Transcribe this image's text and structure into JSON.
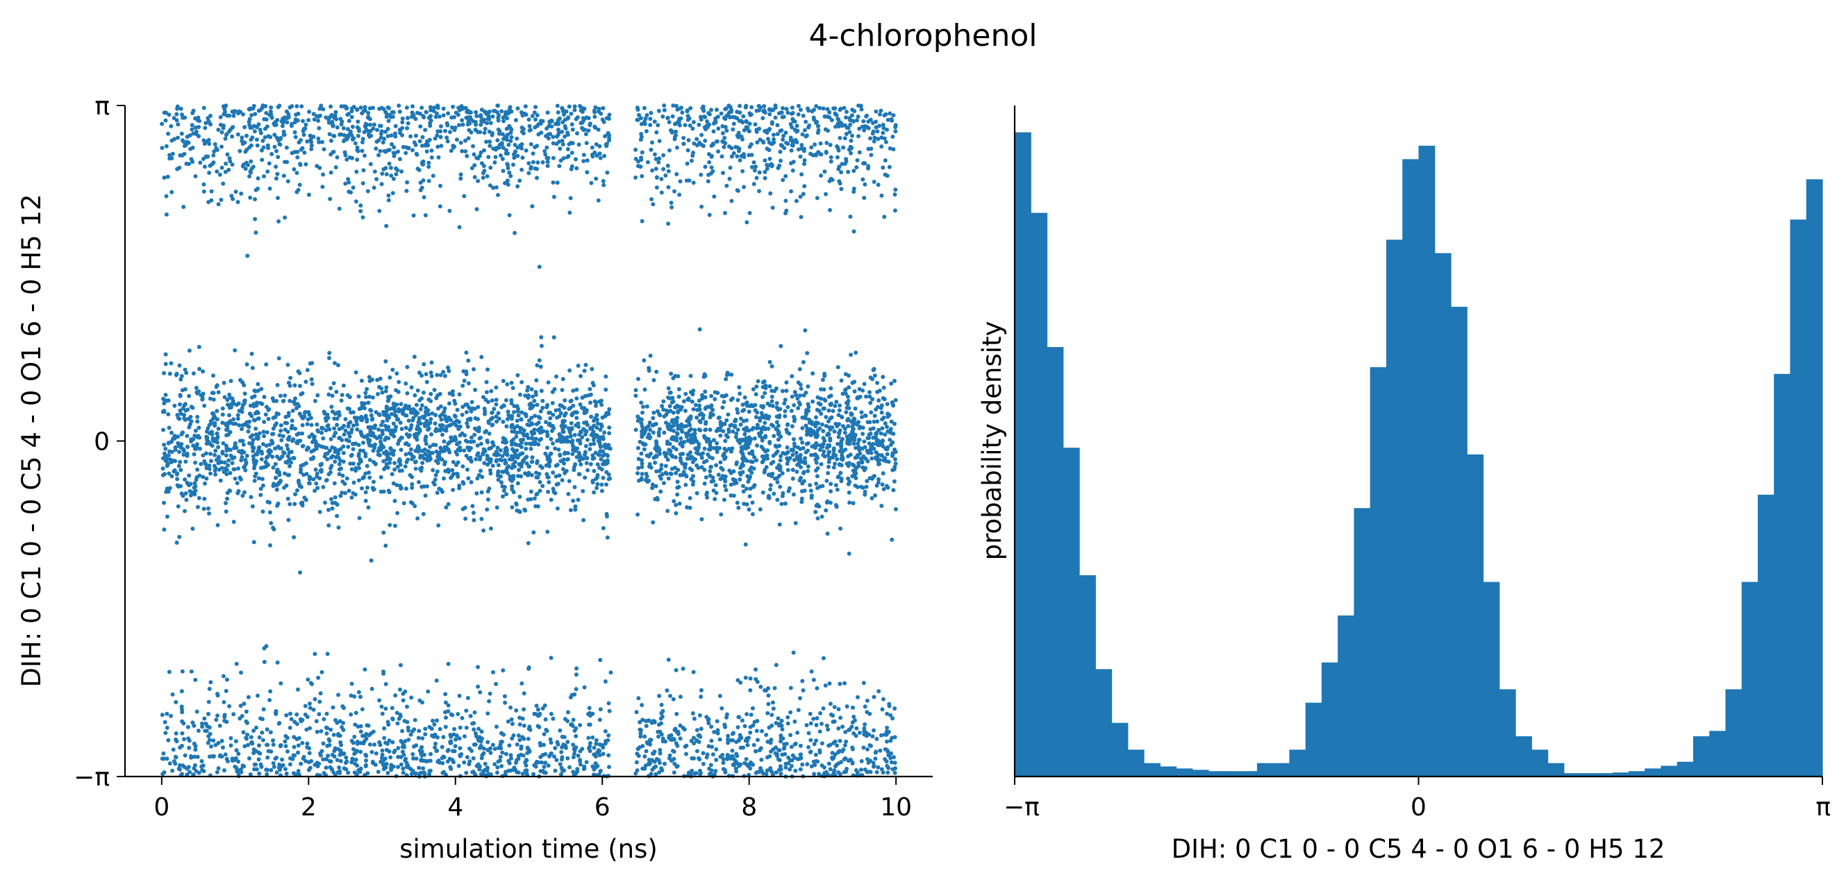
{
  "figure": {
    "title": "4-chlorophenol"
  },
  "colors": {
    "series": "#1f77b4",
    "axis": "#000000"
  },
  "chart_data": [
    {
      "type": "scatter",
      "title": "",
      "xlabel": "simulation time (ns)",
      "ylabel": "DIH:  0 C1 0 -  0 C5 4 -  0 O1 6 -  0 H5 12",
      "xlim": [
        -0.5,
        10.5
      ],
      "ylim": [
        -3.14159,
        3.14159
      ],
      "xticks": [
        0,
        2,
        4,
        6,
        8,
        10
      ],
      "xtick_labels": [
        "0",
        "2",
        "4",
        "6",
        "8",
        "10"
      ],
      "yticks": [
        -3.14159,
        0,
        3.14159
      ],
      "ytick_labels": [
        "−π",
        "0",
        "π"
      ],
      "n_points": 6500,
      "clusters": [
        {
          "center": 0,
          "spread": 0.32,
          "weight": 0.5
        },
        {
          "center": 3.14159,
          "spread": 0.42,
          "weight": 0.25
        },
        {
          "center": -3.14159,
          "spread": 0.42,
          "weight": 0.25
        }
      ],
      "gaps_ns": [
        [
          6.12,
          6.45
        ]
      ],
      "grid": false,
      "legend": "none"
    },
    {
      "type": "bar",
      "title": "",
      "xlabel": "DIH:  0 C1 0 -  0 C5 4 -  0 O1 6 -  0 H5 12",
      "ylabel": "probability density",
      "xlim": [
        -3.14159,
        3.14159
      ],
      "xticks": [
        -3.14159,
        0,
        3.14159
      ],
      "xtick_labels": [
        "−π",
        "0",
        "π"
      ],
      "bins": 50,
      "values": [
        0.96,
        0.84,
        0.64,
        0.49,
        0.3,
        0.16,
        0.08,
        0.04,
        0.02,
        0.015,
        0.012,
        0.01,
        0.008,
        0.008,
        0.008,
        0.02,
        0.02,
        0.04,
        0.11,
        0.17,
        0.24,
        0.4,
        0.61,
        0.8,
        0.92,
        0.94,
        0.78,
        0.7,
        0.48,
        0.29,
        0.13,
        0.06,
        0.04,
        0.02,
        0.005,
        0.005,
        0.005,
        0.006,
        0.008,
        0.012,
        0.016,
        0.022,
        0.06,
        0.068,
        0.13,
        0.29,
        0.42,
        0.6,
        0.83,
        0.89
      ],
      "ylim": [
        0,
        1.0
      ],
      "grid": false,
      "legend": "none"
    }
  ]
}
